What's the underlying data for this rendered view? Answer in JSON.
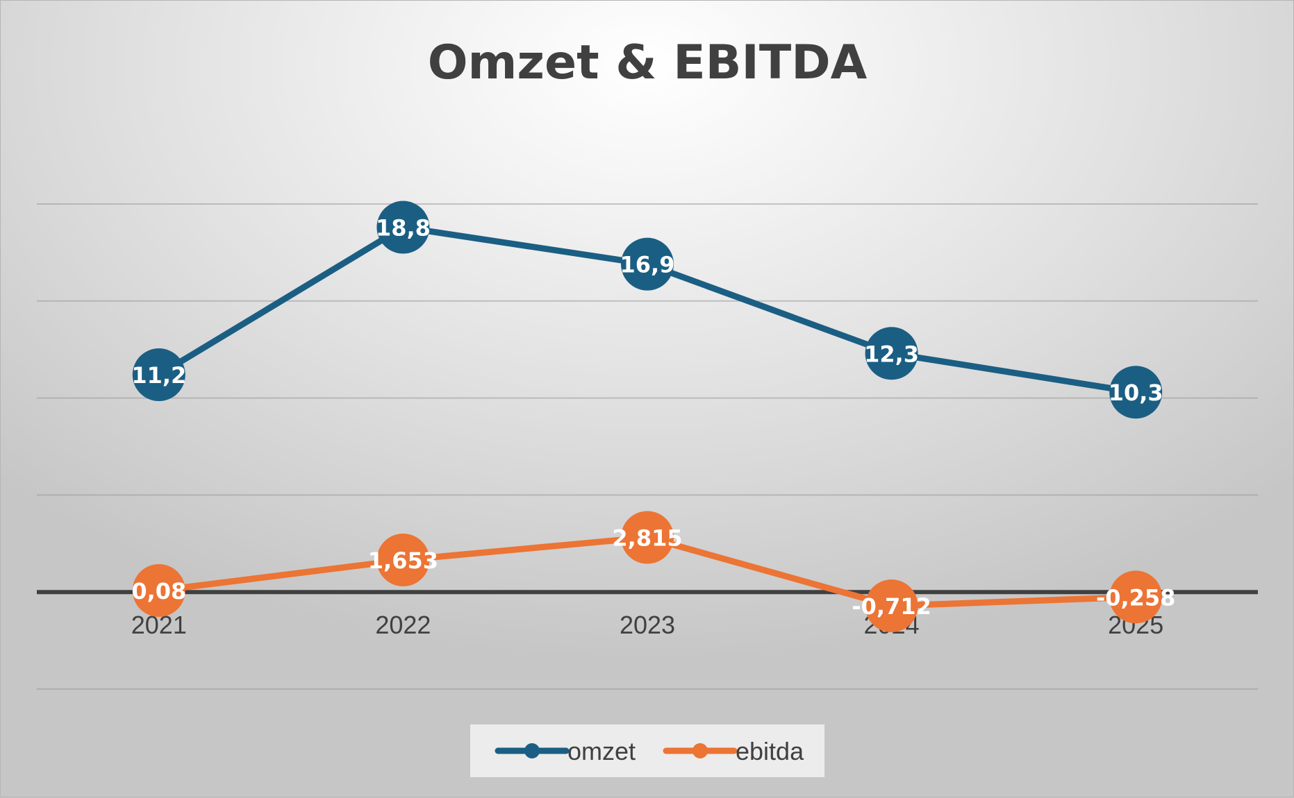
{
  "chart_data": {
    "type": "line",
    "title": "Omzet & EBITDA",
    "categories": [
      "2021",
      "2022",
      "2023",
      "2024",
      "2025"
    ],
    "series": [
      {
        "name": "omzet",
        "values": [
          11.2,
          18.8,
          16.9,
          12.3,
          10.3
        ],
        "labels": [
          "11,2",
          "18,8",
          "16,9",
          "12,3",
          "10,3"
        ],
        "color": "#1b5e83"
      },
      {
        "name": "ebitda",
        "values": [
          0.08,
          1.653,
          2.815,
          -0.712,
          -0.258
        ],
        "labels": [
          "0,08",
          "1,653",
          "2,815",
          "-0,712",
          "-0,258"
        ],
        "color": "#ec7434"
      }
    ],
    "ylim": [
      -5,
      20
    ],
    "gridlines": [
      -5,
      5,
      10,
      15,
      20
    ],
    "grid": true,
    "zero_line_color": "#404040",
    "legend_position": "bottom"
  }
}
